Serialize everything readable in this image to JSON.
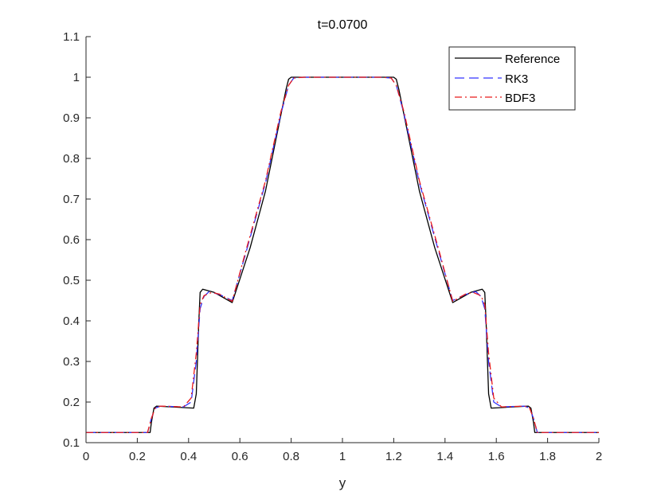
{
  "chart_data": {
    "type": "line",
    "title": "t=0.0700",
    "xlabel": "y",
    "ylabel": "",
    "xlim": [
      0,
      2
    ],
    "ylim": [
      0.1,
      1.1
    ],
    "xticks": [
      0,
      0.2,
      0.4,
      0.6,
      0.8,
      1,
      1.2,
      1.4,
      1.6,
      1.8,
      2
    ],
    "xtick_labels": [
      "0",
      "0.2",
      "0.4",
      "0.6",
      "0.8",
      "1",
      "1.2",
      "1.4",
      "1.6",
      "1.8",
      "2"
    ],
    "yticks": [
      0.1,
      0.2,
      0.3,
      0.4,
      0.5,
      0.6,
      0.7,
      0.8,
      0.9,
      1.0,
      1.1
    ],
    "ytick_labels": [
      "0.1",
      "0.2",
      "0.3",
      "0.4",
      "0.5",
      "0.6",
      "0.7",
      "0.8",
      "0.9",
      "1",
      "1.1"
    ],
    "grid": false,
    "legend_position": "top-right",
    "series": [
      {
        "name": "Reference",
        "color": "#000000",
        "style": "solid",
        "x": [
          0,
          0.25,
          0.255,
          0.265,
          0.275,
          0.42,
          0.43,
          0.44,
          0.445,
          0.455,
          0.5,
          0.57,
          0.64,
          0.7,
          0.78,
          0.79,
          0.8,
          1.0,
          1.2,
          1.21,
          1.22,
          1.3,
          1.36,
          1.43,
          1.5,
          1.545,
          1.555,
          1.56,
          1.57,
          1.58,
          1.725,
          1.735,
          1.745,
          1.75,
          2
        ],
        "y": [
          0.125,
          0.125,
          0.15,
          0.185,
          0.19,
          0.185,
          0.22,
          0.4,
          0.47,
          0.478,
          0.47,
          0.445,
          0.58,
          0.72,
          0.97,
          0.995,
          1.0,
          1.0,
          1.0,
          0.995,
          0.97,
          0.72,
          0.58,
          0.445,
          0.47,
          0.478,
          0.47,
          0.4,
          0.22,
          0.185,
          0.19,
          0.185,
          0.15,
          0.125,
          0.125
        ]
      },
      {
        "name": "RK3",
        "color": "#3333ff",
        "style": "dashed",
        "x": [
          0,
          0.24,
          0.255,
          0.27,
          0.29,
          0.38,
          0.41,
          0.43,
          0.445,
          0.46,
          0.48,
          0.52,
          0.57,
          0.62,
          0.7,
          0.76,
          0.79,
          0.81,
          0.85,
          1.0,
          1.15,
          1.19,
          1.21,
          1.24,
          1.3,
          1.38,
          1.43,
          1.48,
          1.52,
          1.54,
          1.555,
          1.57,
          1.59,
          1.62,
          1.71,
          1.73,
          1.745,
          1.76,
          2
        ],
        "y": [
          0.125,
          0.125,
          0.16,
          0.185,
          0.19,
          0.188,
          0.2,
          0.3,
          0.43,
          0.46,
          0.472,
          0.465,
          0.45,
          0.56,
          0.74,
          0.91,
          0.98,
          0.998,
          1.0,
          1.0,
          1.0,
          0.998,
          0.98,
          0.91,
          0.74,
          0.56,
          0.45,
          0.465,
          0.472,
          0.46,
          0.43,
          0.3,
          0.2,
          0.188,
          0.19,
          0.185,
          0.16,
          0.125,
          0.125
        ]
      },
      {
        "name": "BDF3",
        "color": "#e81a1a",
        "style": "dashdot",
        "x": [
          0,
          0.24,
          0.255,
          0.27,
          0.29,
          0.38,
          0.41,
          0.43,
          0.445,
          0.46,
          0.49,
          0.52,
          0.57,
          0.62,
          0.7,
          0.76,
          0.79,
          0.81,
          0.85,
          1.0,
          1.15,
          1.19,
          1.21,
          1.24,
          1.3,
          1.38,
          1.43,
          1.48,
          1.51,
          1.54,
          1.555,
          1.57,
          1.59,
          1.62,
          1.71,
          1.73,
          1.745,
          1.76,
          2
        ],
        "y": [
          0.125,
          0.125,
          0.16,
          0.185,
          0.19,
          0.188,
          0.21,
          0.32,
          0.44,
          0.462,
          0.47,
          0.466,
          0.448,
          0.565,
          0.745,
          0.915,
          0.98,
          0.998,
          1.0,
          1.0,
          1.0,
          0.998,
          0.98,
          0.915,
          0.745,
          0.565,
          0.448,
          0.466,
          0.47,
          0.462,
          0.44,
          0.32,
          0.21,
          0.188,
          0.19,
          0.185,
          0.16,
          0.125,
          0.125
        ]
      }
    ]
  }
}
